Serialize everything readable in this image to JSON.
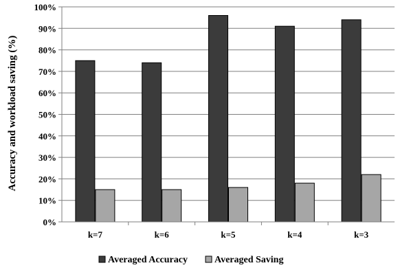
{
  "chart_data": {
    "type": "bar",
    "categories": [
      "k=7",
      "k=6",
      "k=5",
      "k=4",
      "k=3"
    ],
    "series": [
      {
        "name": "Averaged Accuracy",
        "values": [
          75,
          74,
          96,
          91,
          94
        ],
        "color": "#3b3b3b"
      },
      {
        "name": "Averaged Saving",
        "values": [
          15,
          15,
          16,
          18,
          22
        ],
        "color": "#a6a6a6"
      }
    ],
    "ylabel": "Accuracy and workload saving (%)",
    "ylim": [
      0,
      100
    ],
    "yticks": [
      "0%",
      "10%",
      "20%",
      "30%",
      "40%",
      "50%",
      "60%",
      "70%",
      "80%",
      "90%",
      "100%"
    ],
    "grid": true,
    "legend": "bottom"
  }
}
